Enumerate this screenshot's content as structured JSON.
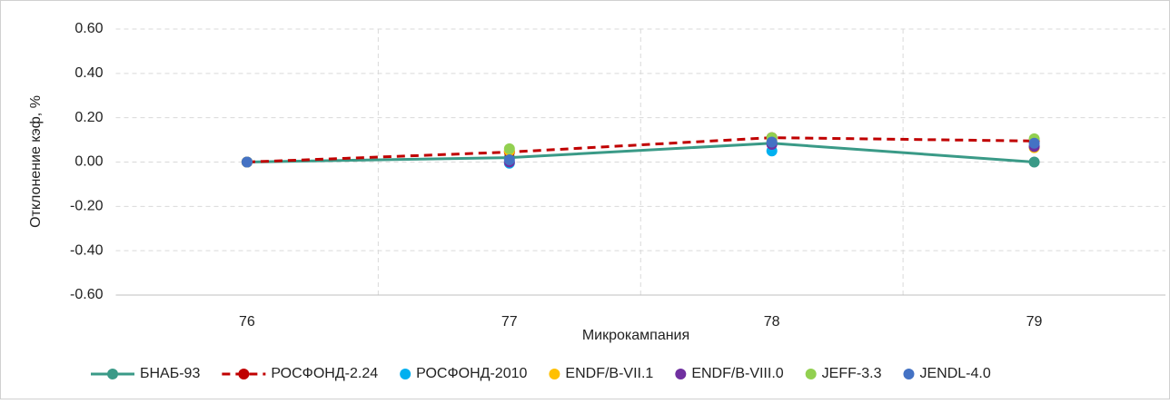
{
  "chart_data": {
    "type": "line",
    "x_label": "Микрокампания",
    "y_label": "Отклонение кэф, %",
    "categories": [
      "76",
      "77",
      "78",
      "79"
    ],
    "ylim": [
      -0.6,
      0.6
    ],
    "yticks": [
      {
        "value": -0.6,
        "label": "-0.60"
      },
      {
        "value": -0.4,
        "label": "-0.40"
      },
      {
        "value": -0.2,
        "label": "-0.20"
      },
      {
        "value": 0,
        "label": "0.00"
      },
      {
        "value": 0.2,
        "label": "0.20"
      },
      {
        "value": 0.4,
        "label": "0.40"
      },
      {
        "value": 0.6,
        "label": "0.60"
      }
    ],
    "grid": true,
    "legend": "bottom",
    "series": [
      {
        "name": "БНАБ-93",
        "color": "#3a9a87",
        "style": "solid",
        "values": [
          0,
          0.02,
          0.085,
          0.0
        ]
      },
      {
        "name": "РОСФОНД-2.24",
        "color": "#c00000",
        "style": "dashed",
        "values": [
          0,
          0.045,
          0.11,
          0.095
        ]
      },
      {
        "name": "РОСФОНД-2010",
        "color": "#00b0f0",
        "style": "markers",
        "values": [
          0,
          -0.005,
          0.05,
          0.07
        ]
      },
      {
        "name": "ENDF/B-VII.1",
        "color": "#ffc000",
        "style": "markers",
        "values": [
          0,
          0.05,
          0.1,
          0.065
        ]
      },
      {
        "name": "ENDF/B-VIII.0",
        "color": "#7030a0",
        "style": "markers",
        "values": [
          0,
          0.0,
          0.08,
          0.07
        ]
      },
      {
        "name": "JEFF-3.3",
        "color": "#92d050",
        "style": "markers",
        "values": [
          0,
          0.06,
          0.11,
          0.105
        ]
      },
      {
        "name": "JENDL-4.0",
        "color": "#4472c4",
        "style": "markers",
        "values": [
          0,
          0.01,
          0.09,
          0.085
        ]
      }
    ]
  }
}
